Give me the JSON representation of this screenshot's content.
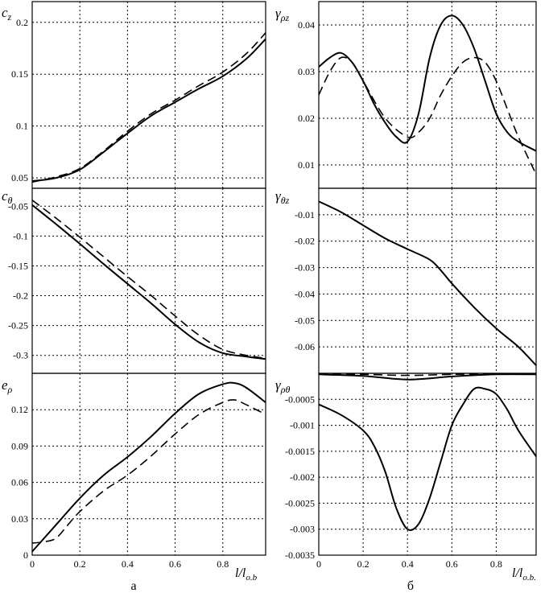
{
  "chart_data": [
    {
      "type": "line",
      "id": "cz",
      "ylabel": "c_z",
      "ylim": [
        0.04,
        0.22
      ],
      "yticks": [
        0.05,
        0.1,
        0.15,
        0.2
      ],
      "yticklabels": [
        "0.05",
        "0.1",
        "0.15",
        "0.2"
      ],
      "series": [
        {
          "style": "solid",
          "x": [
            0,
            0.1,
            0.2,
            0.3,
            0.4,
            0.5,
            0.6,
            0.7,
            0.8,
            0.9,
            0.98
          ],
          "y": [
            0.047,
            0.05,
            0.058,
            0.075,
            0.093,
            0.11,
            0.123,
            0.136,
            0.148,
            0.165,
            0.184
          ]
        },
        {
          "style": "dashed",
          "x": [
            0,
            0.1,
            0.2,
            0.3,
            0.4,
            0.5,
            0.6,
            0.7,
            0.8,
            0.9,
            0.98
          ],
          "y": [
            0.046,
            0.051,
            0.059,
            0.076,
            0.095,
            0.112,
            0.125,
            0.139,
            0.152,
            0.17,
            0.19
          ]
        }
      ]
    },
    {
      "type": "line",
      "id": "gpz",
      "ylabel": "γ_ρz",
      "ylim": [
        0.005,
        0.045
      ],
      "yticks": [
        0.01,
        0.02,
        0.03,
        0.04
      ],
      "yticklabels": [
        "0.01",
        "0.02",
        "0.03",
        "0.04"
      ],
      "series": [
        {
          "style": "solid",
          "x": [
            0,
            0.05,
            0.1,
            0.15,
            0.2,
            0.25,
            0.3,
            0.35,
            0.4,
            0.45,
            0.5,
            0.55,
            0.6,
            0.65,
            0.7,
            0.75,
            0.8,
            0.85,
            0.9,
            0.98
          ],
          "y": [
            0.031,
            0.033,
            0.034,
            0.032,
            0.028,
            0.023,
            0.019,
            0.016,
            0.015,
            0.021,
            0.033,
            0.04,
            0.042,
            0.04,
            0.035,
            0.028,
            0.021,
            0.017,
            0.015,
            0.013
          ]
        },
        {
          "style": "dashed",
          "x": [
            0,
            0.05,
            0.1,
            0.15,
            0.2,
            0.3,
            0.4,
            0.45,
            0.5,
            0.55,
            0.6,
            0.65,
            0.7,
            0.75,
            0.8,
            0.85,
            0.9,
            0.98
          ],
          "y": [
            0.025,
            0.03,
            0.033,
            0.032,
            0.028,
            0.02,
            0.016,
            0.017,
            0.02,
            0.025,
            0.029,
            0.032,
            0.033,
            0.032,
            0.028,
            0.022,
            0.016,
            0.008
          ]
        }
      ]
    },
    {
      "type": "line",
      "id": "cth",
      "ylabel": "c_θ",
      "ylim": [
        -0.33,
        -0.02
      ],
      "yticks": [
        -0.05,
        -0.1,
        -0.15,
        -0.2,
        -0.25,
        -0.3
      ],
      "yticklabels": [
        "-0.05",
        "-0.1",
        "-0.15",
        "-0.2",
        "-0.25",
        "-0.3"
      ],
      "series": [
        {
          "style": "solid",
          "x": [
            0,
            0.1,
            0.2,
            0.3,
            0.4,
            0.5,
            0.6,
            0.7,
            0.8,
            0.9,
            0.98
          ],
          "y": [
            -0.048,
            -0.08,
            -0.113,
            -0.147,
            -0.18,
            -0.213,
            -0.248,
            -0.278,
            -0.296,
            -0.302,
            -0.306
          ]
        },
        {
          "style": "dashed",
          "x": [
            0,
            0.1,
            0.2,
            0.3,
            0.4,
            0.5,
            0.6,
            0.7,
            0.8,
            0.9,
            0.98
          ],
          "y": [
            -0.04,
            -0.07,
            -0.102,
            -0.135,
            -0.168,
            -0.2,
            -0.234,
            -0.266,
            -0.29,
            -0.3,
            -0.305
          ]
        }
      ]
    },
    {
      "type": "line",
      "id": "gthz",
      "ylabel": "γ_θz",
      "ylim": [
        -0.07,
        0.0
      ],
      "yticks": [
        -0.01,
        -0.02,
        -0.03,
        -0.04,
        -0.05,
        -0.06
      ],
      "yticklabels": [
        "-0.01",
        "-0.02",
        "-0.03",
        "-0.04",
        "-0.05",
        "-0.06"
      ],
      "series": [
        {
          "style": "solid",
          "x": [
            0,
            0.1,
            0.2,
            0.3,
            0.4,
            0.5,
            0.55,
            0.6,
            0.7,
            0.8,
            0.9,
            0.98
          ],
          "y": [
            -0.005,
            -0.009,
            -0.014,
            -0.019,
            -0.023,
            -0.027,
            -0.031,
            -0.036,
            -0.045,
            -0.053,
            -0.06,
            -0.067
          ]
        }
      ]
    },
    {
      "type": "line",
      "id": "ep",
      "ylabel": "e_ρ",
      "ylim": [
        0,
        0.15
      ],
      "yticks": [
        0,
        0.03,
        0.06,
        0.09,
        0.12
      ],
      "yticklabels": [
        "0",
        "0.03",
        "0.06",
        "0.09",
        "0.12"
      ],
      "xticks": [
        0,
        0.2,
        0.4,
        0.6,
        0.8
      ],
      "xticklabels": [
        "0",
        "0.2",
        "0.4",
        "0.6",
        "0.8"
      ],
      "series": [
        {
          "style": "solid",
          "x": [
            0,
            0.05,
            0.1,
            0.2,
            0.3,
            0.4,
            0.5,
            0.6,
            0.7,
            0.8,
            0.85,
            0.9,
            0.98
          ],
          "y": [
            0.003,
            0.014,
            0.025,
            0.047,
            0.066,
            0.081,
            0.098,
            0.117,
            0.133,
            0.141,
            0.142,
            0.138,
            0.126
          ]
        },
        {
          "style": "dashed",
          "x": [
            0,
            0.05,
            0.1,
            0.15,
            0.2,
            0.3,
            0.4,
            0.5,
            0.6,
            0.7,
            0.8,
            0.85,
            0.9,
            0.98
          ],
          "y": [
            0.01,
            0.011,
            0.014,
            0.025,
            0.036,
            0.053,
            0.066,
            0.082,
            0.1,
            0.116,
            0.126,
            0.128,
            0.124,
            0.116
          ]
        }
      ]
    },
    {
      "type": "line",
      "id": "gpth",
      "ylabel": "γ_ρθ",
      "ylim": [
        -0.0035,
        0.0
      ],
      "yticks": [
        -0.0005,
        -0.001,
        -0.0015,
        -0.002,
        -0.0025,
        -0.003,
        -0.0035
      ],
      "yticklabels": [
        "-0.0005",
        "-0.001",
        "-0.0015",
        "-0.002",
        "-0.0025",
        "-0.003",
        "-0.0035"
      ],
      "xticks": [
        0,
        0.2,
        0.4,
        0.6,
        0.8
      ],
      "xticklabels": [
        "0",
        "0.2",
        "0.4",
        "0.6",
        "0.8"
      ],
      "series": [
        {
          "style": "solid",
          "x": [
            0,
            0.1,
            0.2,
            0.25,
            0.3,
            0.35,
            0.4,
            0.45,
            0.5,
            0.55,
            0.6,
            0.65,
            0.7,
            0.75,
            0.8,
            0.85,
            0.9,
            0.98
          ],
          "y": [
            -0.0006,
            -0.0008,
            -0.0011,
            -0.0014,
            -0.0019,
            -0.0026,
            -0.003,
            -0.0029,
            -0.0024,
            -0.0017,
            -0.001,
            -0.0006,
            -0.0003,
            -0.0003,
            -0.0004,
            -0.0007,
            -0.0011,
            -0.0016
          ]
        },
        {
          "style": "solid",
          "x": [
            0,
            0.2,
            0.4,
            0.6,
            0.8,
            0.98
          ],
          "y": [
            -2e-05,
            -5e-05,
            -0.00012,
            -6e-05,
            -2e-05,
            -2e-05
          ]
        },
        {
          "style": "dashed",
          "x": [
            0,
            0.2,
            0.4,
            0.6,
            0.8,
            0.98
          ],
          "y": [
            -1e-05,
            -2e-05,
            -4e-05,
            -2e-05,
            -1e-05,
            -1e-05
          ]
        }
      ]
    }
  ],
  "labels": {
    "cz": "c",
    "cz_sub": "z",
    "gpz": "γ",
    "gpz_sub": "ρz",
    "cth": "c",
    "cth_sub": "θ",
    "gthz": "γ",
    "gthz_sub": "θz",
    "ep": "e",
    "ep_sub": "ρ",
    "gpth": "γ",
    "gpth_sub": "ρθ",
    "xl_left": "l/l",
    "xl_left_sub": "o.b",
    "xl_right": "l/l",
    "xl_right_sub": "o.b.",
    "cap_left": "a",
    "cap_right": "б"
  }
}
